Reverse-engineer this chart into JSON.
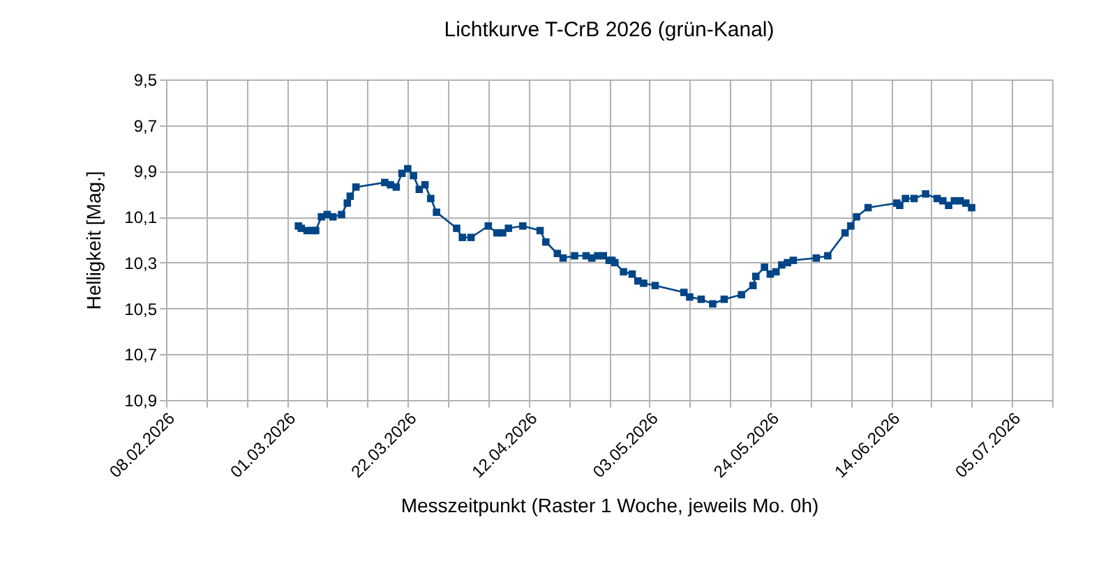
{
  "chart_data": {
    "type": "line",
    "title": "Lichtkurve T-CrB 2026 (grün-Kanal)",
    "xlabel": "Messzeitpunkt (Raster 1 Woche, jeweils Mo. 0h)",
    "ylabel": "Helligkeit [Mag.]",
    "x": [
      "2026-03-03",
      "2026-03-03T12:00",
      "2026-03-04T12:00",
      "2026-03-05T12:00",
      "2026-03-06",
      "2026-03-07",
      "2026-03-08",
      "2026-03-09",
      "2026-03-10T12:00",
      "2026-03-11T12:00",
      "2026-03-12",
      "2026-03-13",
      "2026-03-18",
      "2026-03-19",
      "2026-03-20",
      "2026-03-21",
      "2026-03-22",
      "2026-03-23",
      "2026-03-24",
      "2026-03-25",
      "2026-03-26",
      "2026-03-27",
      "2026-03-30T12:00",
      "2026-03-31T12:00",
      "2026-04-02",
      "2026-04-05",
      "2026-04-06T12:00",
      "2026-04-07T12:00",
      "2026-04-08T12:00",
      "2026-04-11",
      "2026-04-14",
      "2026-04-15",
      "2026-04-17",
      "2026-04-18",
      "2026-04-20",
      "2026-04-22",
      "2026-04-23",
      "2026-04-24",
      "2026-04-25",
      "2026-04-26",
      "2026-04-26T12:00",
      "2026-04-27",
      "2026-04-28T12:00",
      "2026-04-30",
      "2026-05-01",
      "2026-05-02",
      "2026-05-04",
      "2026-05-09",
      "2026-05-10",
      "2026-05-12",
      "2026-05-14",
      "2026-05-16",
      "2026-05-19",
      "2026-05-21",
      "2026-05-21T12:00",
      "2026-05-23",
      "2026-05-24",
      "2026-05-25",
      "2026-05-26",
      "2026-05-27",
      "2026-05-28",
      "2026-06-01",
      "2026-06-03",
      "2026-06-06",
      "2026-06-07",
      "2026-06-08",
      "2026-06-10",
      "2026-06-15",
      "2026-06-15T12:00",
      "2026-06-16T12:00",
      "2026-06-18",
      "2026-06-20",
      "2026-06-22",
      "2026-06-23",
      "2026-06-24",
      "2026-06-25",
      "2026-06-26",
      "2026-06-27",
      "2026-06-28"
    ],
    "series": [
      {
        "color": "#004586",
        "values": [
          10.14,
          10.15,
          10.16,
          10.16,
          10.16,
          10.1,
          10.09,
          10.1,
          10.09,
          10.04,
          10.01,
          9.97,
          9.95,
          9.96,
          9.97,
          9.91,
          9.89,
          9.92,
          9.98,
          9.96,
          10.02,
          10.08,
          10.15,
          10.19,
          10.19,
          10.14,
          10.17,
          10.17,
          10.15,
          10.14,
          10.16,
          10.21,
          10.26,
          10.28,
          10.27,
          10.27,
          10.28,
          10.27,
          10.27,
          10.29,
          10.29,
          10.3,
          10.34,
          10.35,
          10.38,
          10.39,
          10.4,
          10.43,
          10.45,
          10.46,
          10.48,
          10.46,
          10.44,
          10.4,
          10.36,
          10.32,
          10.35,
          10.34,
          10.31,
          10.3,
          10.29,
          10.28,
          10.27,
          10.17,
          10.14,
          10.1,
          10.06,
          10.04,
          10.05,
          10.02,
          10.02,
          10.0,
          10.02,
          10.03,
          10.05,
          10.03,
          10.03,
          10.04,
          10.06
        ]
      }
    ],
    "xlim": [
      "2026-02-08",
      "2026-07-12"
    ],
    "xticks": [
      {
        "value": "2026-02-08",
        "label": "08.02.2026"
      },
      {
        "value": "2026-02-15",
        "label": null
      },
      {
        "value": "2026-02-22",
        "label": null
      },
      {
        "value": "2026-03-01",
        "label": "01.03.2026"
      },
      {
        "value": "2026-03-08",
        "label": null
      },
      {
        "value": "2026-03-15",
        "label": null
      },
      {
        "value": "2026-03-22",
        "label": "22.03.2026"
      },
      {
        "value": "2026-03-29",
        "label": null
      },
      {
        "value": "2026-04-05",
        "label": null
      },
      {
        "value": "2026-04-12",
        "label": "12.04.2026"
      },
      {
        "value": "2026-04-19",
        "label": null
      },
      {
        "value": "2026-04-26",
        "label": null
      },
      {
        "value": "2026-05-03",
        "label": "03.05.2026"
      },
      {
        "value": "2026-05-10",
        "label": null
      },
      {
        "value": "2026-05-17",
        "label": null
      },
      {
        "value": "2026-05-24",
        "label": "24.05.2026"
      },
      {
        "value": "2026-05-31",
        "label": null
      },
      {
        "value": "2026-06-07",
        "label": null
      },
      {
        "value": "2026-06-14",
        "label": "14.06.2026"
      },
      {
        "value": "2026-06-21",
        "label": null
      },
      {
        "value": "2026-06-28",
        "label": null
      },
      {
        "value": "2026-07-05",
        "label": "05.07.2026"
      },
      {
        "value": "2026-07-12",
        "label": null
      }
    ],
    "ylim": [
      10.9,
      9.5
    ],
    "yticks": [
      {
        "value": 9.5,
        "label": "9,5"
      },
      {
        "value": 9.7,
        "label": "9,7"
      },
      {
        "value": 9.9,
        "label": "9,9"
      },
      {
        "value": 10.1,
        "label": "10,1"
      },
      {
        "value": 10.3,
        "label": "10,3"
      },
      {
        "value": 10.5,
        "label": "10,5"
      },
      {
        "value": 10.7,
        "label": "10,7"
      },
      {
        "value": 10.9,
        "label": "10,9"
      }
    ],
    "grid": true,
    "marker": "square",
    "line_style": "solid"
  }
}
